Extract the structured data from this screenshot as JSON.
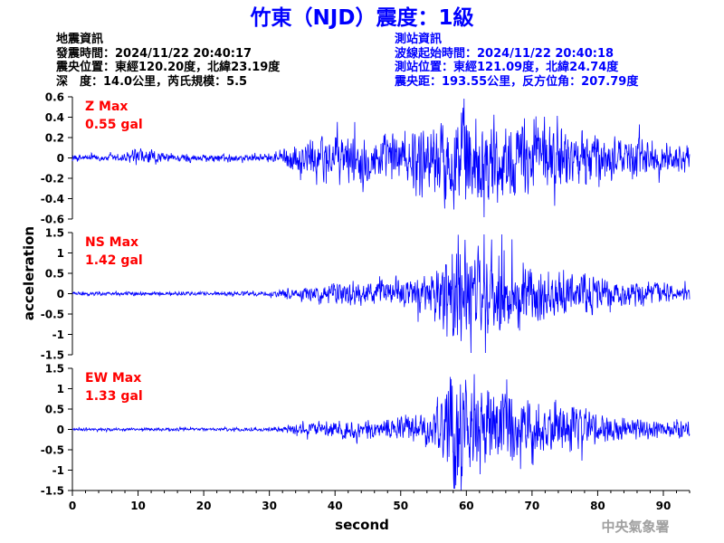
{
  "title": "竹東（NJD）震度：1級",
  "event_info": {
    "heading": "地震資訊",
    "origin_time": "發震時間：2024/11/22 20:40:17",
    "epicenter": "震央位置：東經120.20度，北緯23.19度",
    "depth_magnitude": "深　度：14.0公里，芮氏規模：5.5"
  },
  "station_info": {
    "heading": "測站資訊",
    "wave_start": "波線起始時間：2024/11/22 20:40:18",
    "location": "測站位置：東經121.09度，北緯24.74度",
    "distance_azimuth": "震央距：193.55公里，反方位角：207.79度"
  },
  "agency": "中央氣象署",
  "colors": {
    "title": "#0000ff",
    "trace": "#0000ff",
    "max_label": "#ff0000",
    "station_text": "#0000ff",
    "text": "#000000"
  },
  "chart_data": {
    "type": "line",
    "xlabel": "second",
    "ylabel": "acceleration",
    "xlim": [
      0,
      94
    ],
    "x_ticks": [
      0,
      10,
      20,
      30,
      40,
      50,
      60,
      70,
      80,
      90
    ],
    "panels": [
      {
        "name": "Z",
        "max_label": "Z Max",
        "max_value": "0.55 gal",
        "ylim": [
          -0.6,
          0.6
        ],
        "y_ticks": [
          0.6,
          0.4,
          0.2,
          0,
          -0.2,
          -0.4,
          -0.6
        ],
        "envelope": [
          [
            0,
            0.03
          ],
          [
            8,
            0.04
          ],
          [
            10,
            0.08
          ],
          [
            12,
            0.07
          ],
          [
            14,
            0.04
          ],
          [
            30,
            0.03
          ],
          [
            33,
            0.1
          ],
          [
            36,
            0.17
          ],
          [
            40,
            0.21
          ],
          [
            45,
            0.2
          ],
          [
            50,
            0.23
          ],
          [
            55,
            0.3
          ],
          [
            58,
            0.42
          ],
          [
            59,
            0.5
          ],
          [
            61,
            0.4
          ],
          [
            65,
            0.35
          ],
          [
            68,
            0.3
          ],
          [
            72,
            0.3
          ],
          [
            77,
            0.24
          ],
          [
            82,
            0.2
          ],
          [
            87,
            0.2
          ],
          [
            90,
            0.14
          ],
          [
            94,
            0.12
          ]
        ]
      },
      {
        "name": "NS",
        "max_label": "NS Max",
        "max_value": "1.42 gal",
        "ylim": [
          -1.5,
          1.5
        ],
        "y_ticks": [
          1.5,
          1,
          0.5,
          0,
          -0.5,
          -1,
          -1.5
        ],
        "envelope": [
          [
            0,
            0.04
          ],
          [
            30,
            0.05
          ],
          [
            33,
            0.12
          ],
          [
            38,
            0.2
          ],
          [
            42,
            0.25
          ],
          [
            50,
            0.3
          ],
          [
            55,
            0.45
          ],
          [
            57,
            0.9
          ],
          [
            59,
            1.35
          ],
          [
            61,
            1.05
          ],
          [
            64,
            1.05
          ],
          [
            66,
            0.95
          ],
          [
            68,
            0.7
          ],
          [
            72,
            0.55
          ],
          [
            75,
            0.5
          ],
          [
            79,
            0.45
          ],
          [
            82,
            0.32
          ],
          [
            87,
            0.25
          ],
          [
            94,
            0.2
          ]
        ]
      },
      {
        "name": "EW",
        "max_label": "EW Max",
        "max_value": "1.33 gal",
        "ylim": [
          -1.5,
          1.5
        ],
        "y_ticks": [
          1.5,
          1,
          0.5,
          0,
          -0.5,
          -1,
          -1.5
        ],
        "envelope": [
          [
            0,
            0.03
          ],
          [
            30,
            0.04
          ],
          [
            33,
            0.1
          ],
          [
            38,
            0.18
          ],
          [
            45,
            0.2
          ],
          [
            52,
            0.3
          ],
          [
            55,
            0.45
          ],
          [
            57,
            0.9
          ],
          [
            58,
            1.3
          ],
          [
            60,
            1.05
          ],
          [
            63,
            0.95
          ],
          [
            65,
            0.9
          ],
          [
            68,
            0.7
          ],
          [
            72,
            0.6
          ],
          [
            78,
            0.45
          ],
          [
            82,
            0.28
          ],
          [
            87,
            0.2
          ],
          [
            94,
            0.16
          ]
        ]
      }
    ]
  }
}
